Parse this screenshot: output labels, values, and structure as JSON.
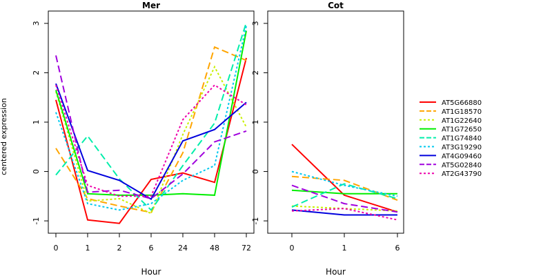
{
  "chart_data": {
    "type": "line",
    "ylabel": "centered expression",
    "ylim": [
      -1.25,
      3.25
    ],
    "yticks": [
      -1,
      0,
      1,
      2,
      3
    ],
    "legend_position": "right",
    "grid": false,
    "series": [
      {
        "name": "AT5G66880",
        "color": "#ff0000",
        "dash": "solid"
      },
      {
        "name": "AT1G18570",
        "color": "#ffa500",
        "dash": "dashed"
      },
      {
        "name": "AT1G22640",
        "color": "#c8f000",
        "dash": "dotted"
      },
      {
        "name": "AT1G72650",
        "color": "#00ee00",
        "dash": "solid"
      },
      {
        "name": "AT1G74840",
        "color": "#00eeaa",
        "dash": "dashed"
      },
      {
        "name": "AT3G19290",
        "color": "#00c8ee",
        "dash": "dotted"
      },
      {
        "name": "AT4G09460",
        "color": "#0000dd",
        "dash": "solid"
      },
      {
        "name": "AT5G02840",
        "color": "#a000dd",
        "dash": "dashed"
      },
      {
        "name": "AT2G43790",
        "color": "#ee00aa",
        "dash": "dotted"
      }
    ],
    "panels": [
      {
        "title": "Mer",
        "xlabel": "Hour",
        "x": [
          "0",
          "1",
          "2",
          "6",
          "24",
          "48",
          "72"
        ],
        "values": [
          [
            1.45,
            -0.98,
            -1.05,
            -0.16,
            -0.03,
            -0.22,
            2.3
          ],
          [
            0.47,
            -0.55,
            -0.7,
            -0.83,
            0.38,
            2.52,
            2.25
          ],
          [
            1.62,
            -0.6,
            -0.55,
            -0.85,
            0.75,
            2.12,
            0.9
          ],
          [
            1.65,
            -0.45,
            -0.48,
            -0.48,
            -0.45,
            -0.48,
            2.85
          ],
          [
            -0.07,
            0.72,
            -0.15,
            -0.78,
            0.12,
            0.98,
            3.02
          ],
          [
            1.2,
            -0.65,
            -0.78,
            -0.65,
            -0.18,
            0.12,
            2.95
          ],
          [
            1.78,
            0.02,
            -0.18,
            -0.56,
            0.62,
            0.85,
            1.4
          ],
          [
            2.35,
            -0.42,
            -0.38,
            -0.55,
            -0.05,
            0.6,
            0.82
          ],
          [
            1.75,
            -0.28,
            -0.5,
            -0.5,
            1.05,
            1.75,
            1.35
          ]
        ]
      },
      {
        "title": "Cot",
        "xlabel": "Hour",
        "x": [
          "0",
          "1",
          "6"
        ],
        "values": [
          [
            0.55,
            -0.48,
            -0.82
          ],
          [
            -0.1,
            -0.18,
            -0.58
          ],
          [
            -0.7,
            -0.75,
            -0.8
          ],
          [
            -0.38,
            -0.45,
            -0.45
          ],
          [
            -0.72,
            -0.25,
            -0.55
          ],
          [
            0.0,
            -0.28,
            -0.5
          ],
          [
            -0.78,
            -0.88,
            -0.88
          ],
          [
            -0.28,
            -0.65,
            -0.82
          ],
          [
            -0.8,
            -0.75,
            -0.98
          ]
        ]
      }
    ]
  }
}
